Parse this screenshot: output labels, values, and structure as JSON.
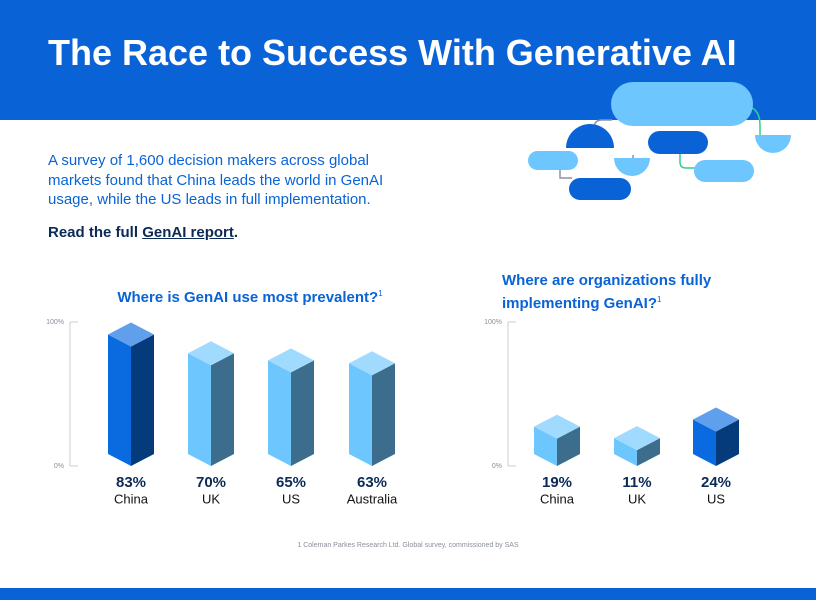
{
  "header": {
    "title": "The Race to Success With Generative AI"
  },
  "intro": {
    "text": "A survey of 1,600 decision makers across global markets found that China leads the world in GenAI usage, while the US leads in full implementation.",
    "cta_start": "Read the full ",
    "cta_link": "GenAI report",
    "cta_end": "."
  },
  "footnote": "1 Coleman Parkes Research Ltd. Global survey, commissioned by SAS",
  "chart_data": [
    {
      "type": "bar",
      "title": "Where is GenAI use most prevalent?",
      "title_note": "1",
      "categories": [
        "China",
        "UK",
        "US",
        "Australia"
      ],
      "values": [
        83,
        70,
        65,
        63
      ],
      "value_labels": [
        "83%",
        "70%",
        "65%",
        "63%"
      ],
      "colors": [
        "#0a6be0",
        "#6ec6ff",
        "#6ec6ff",
        "#6ec6ff"
      ],
      "ylim": [
        0,
        100
      ],
      "yticks": [
        {
          "value": 0,
          "label": "0%"
        },
        {
          "value": 100,
          "label": "100%"
        }
      ]
    },
    {
      "type": "bar",
      "title": "Where are organizations fully implementing GenAI?",
      "title_note": "1",
      "categories": [
        "China",
        "UK",
        "US"
      ],
      "values": [
        19,
        11,
        24
      ],
      "value_labels": [
        "19%",
        "11%",
        "24%"
      ],
      "colors": [
        "#6ec6ff",
        "#6ec6ff",
        "#0a6be0"
      ],
      "ylim": [
        0,
        100
      ],
      "yticks": [
        {
          "value": 0,
          "label": "0%"
        },
        {
          "value": 100,
          "label": "100%"
        }
      ]
    }
  ]
}
